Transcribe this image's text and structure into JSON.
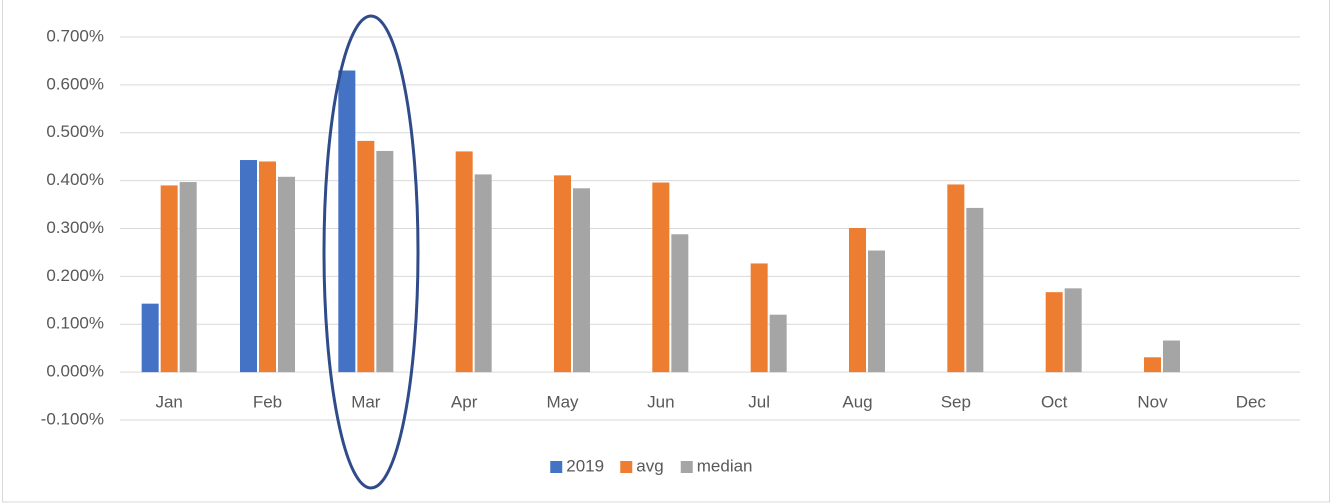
{
  "chart_data": {
    "type": "bar",
    "categories": [
      "Jan",
      "Feb",
      "Mar",
      "Apr",
      "May",
      "Jun",
      "Jul",
      "Aug",
      "Sep",
      "Oct",
      "Nov",
      "Dec"
    ],
    "series": [
      {
        "name": "2019",
        "color": "#4472c4",
        "values": [
          0.143,
          0.443,
          0.63,
          null,
          null,
          null,
          null,
          null,
          null,
          null,
          null,
          null
        ]
      },
      {
        "name": "avg",
        "color": "#ed7d31",
        "values": [
          0.39,
          0.44,
          0.483,
          0.461,
          0.411,
          0.396,
          0.227,
          0.301,
          0.392,
          0.167,
          0.031,
          null
        ]
      },
      {
        "name": "median",
        "color": "#a5a5a5",
        "values": [
          0.397,
          0.408,
          0.462,
          0.413,
          0.384,
          0.288,
          0.12,
          0.254,
          0.343,
          0.175,
          0.066,
          null
        ]
      }
    ],
    "ylim": [
      -0.1,
      0.7
    ],
    "yticks": [
      {
        "value": -0.1,
        "label": "-0.100%"
      },
      {
        "value": 0,
        "label": "0.000%"
      },
      {
        "value": 0.1,
        "label": "0.100%"
      },
      {
        "value": 0.2,
        "label": "0.200%"
      },
      {
        "value": 0.3,
        "label": "0.300%"
      },
      {
        "value": 0.4,
        "label": "0.400%"
      },
      {
        "value": 0.5,
        "label": "0.500%"
      },
      {
        "value": 0.6,
        "label": "0.600%"
      },
      {
        "value": 0.7,
        "label": "0.700%"
      }
    ],
    "grid": true,
    "legend": "bottom"
  }
}
